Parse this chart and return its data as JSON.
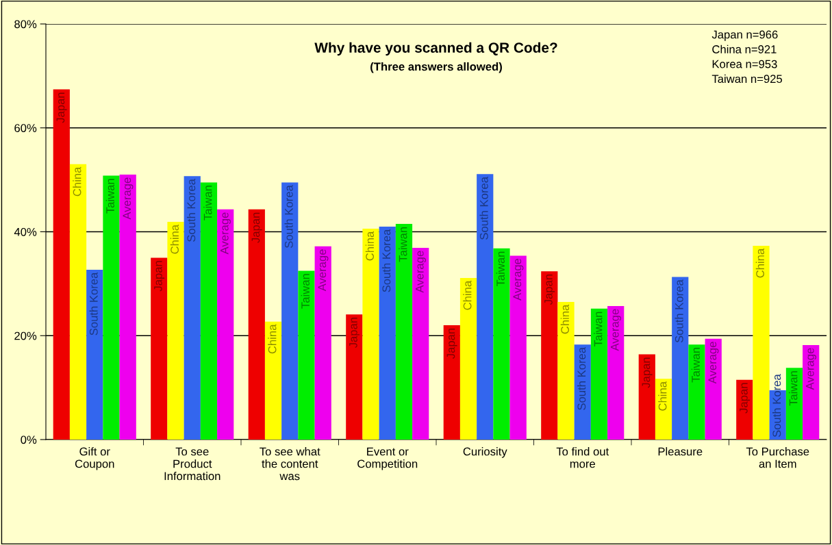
{
  "chart_data": {
    "type": "bar",
    "title": "Why have you scanned a QR Code?",
    "subtitle": "(Three answers allowed)",
    "categories": [
      "Gift or\nCoupon",
      "To see\nProduct\nInformation",
      "To see what\nthe content\nwas",
      "Event or\nCompetition",
      "Curiosity",
      "To find out\nmore",
      "Pleasure",
      "To Purchase\nan Item"
    ],
    "series": [
      {
        "name": "Japan",
        "color": "#ee0000",
        "values": [
          67.4,
          35.0,
          44.3,
          24.1,
          22.0,
          32.4,
          16.4,
          11.5
        ]
      },
      {
        "name": "China",
        "color": "#ffff00",
        "values": [
          53.0,
          41.9,
          22.7,
          40.6,
          31.1,
          26.5,
          11.7,
          37.3
        ]
      },
      {
        "name": "South Korea",
        "color": "#3366ee",
        "values": [
          32.7,
          50.7,
          49.5,
          41.0,
          51.1,
          18.3,
          31.3,
          9.5
        ]
      },
      {
        "name": "Taiwan",
        "color": "#00ee00",
        "values": [
          50.8,
          49.5,
          32.5,
          41.5,
          36.8,
          25.2,
          18.3,
          13.8
        ]
      },
      {
        "name": "Average",
        "color": "#ee00ee",
        "values": [
          51.0,
          44.3,
          37.2,
          36.9,
          35.4,
          25.7,
          19.4,
          18.2
        ]
      }
    ],
    "ylim": [
      0,
      80
    ],
    "yticks": [
      {
        "value": 0,
        "label": "0%"
      },
      {
        "value": 20,
        "label": "20%"
      },
      {
        "value": 40,
        "label": "40%"
      },
      {
        "value": 60,
        "label": "60%"
      },
      {
        "value": 80,
        "label": "80%"
      }
    ],
    "grid": "y",
    "legend": false,
    "annotations": [
      "Japan n=966",
      "China n=921",
      "Korea n=953",
      "Taiwan n=925"
    ]
  }
}
